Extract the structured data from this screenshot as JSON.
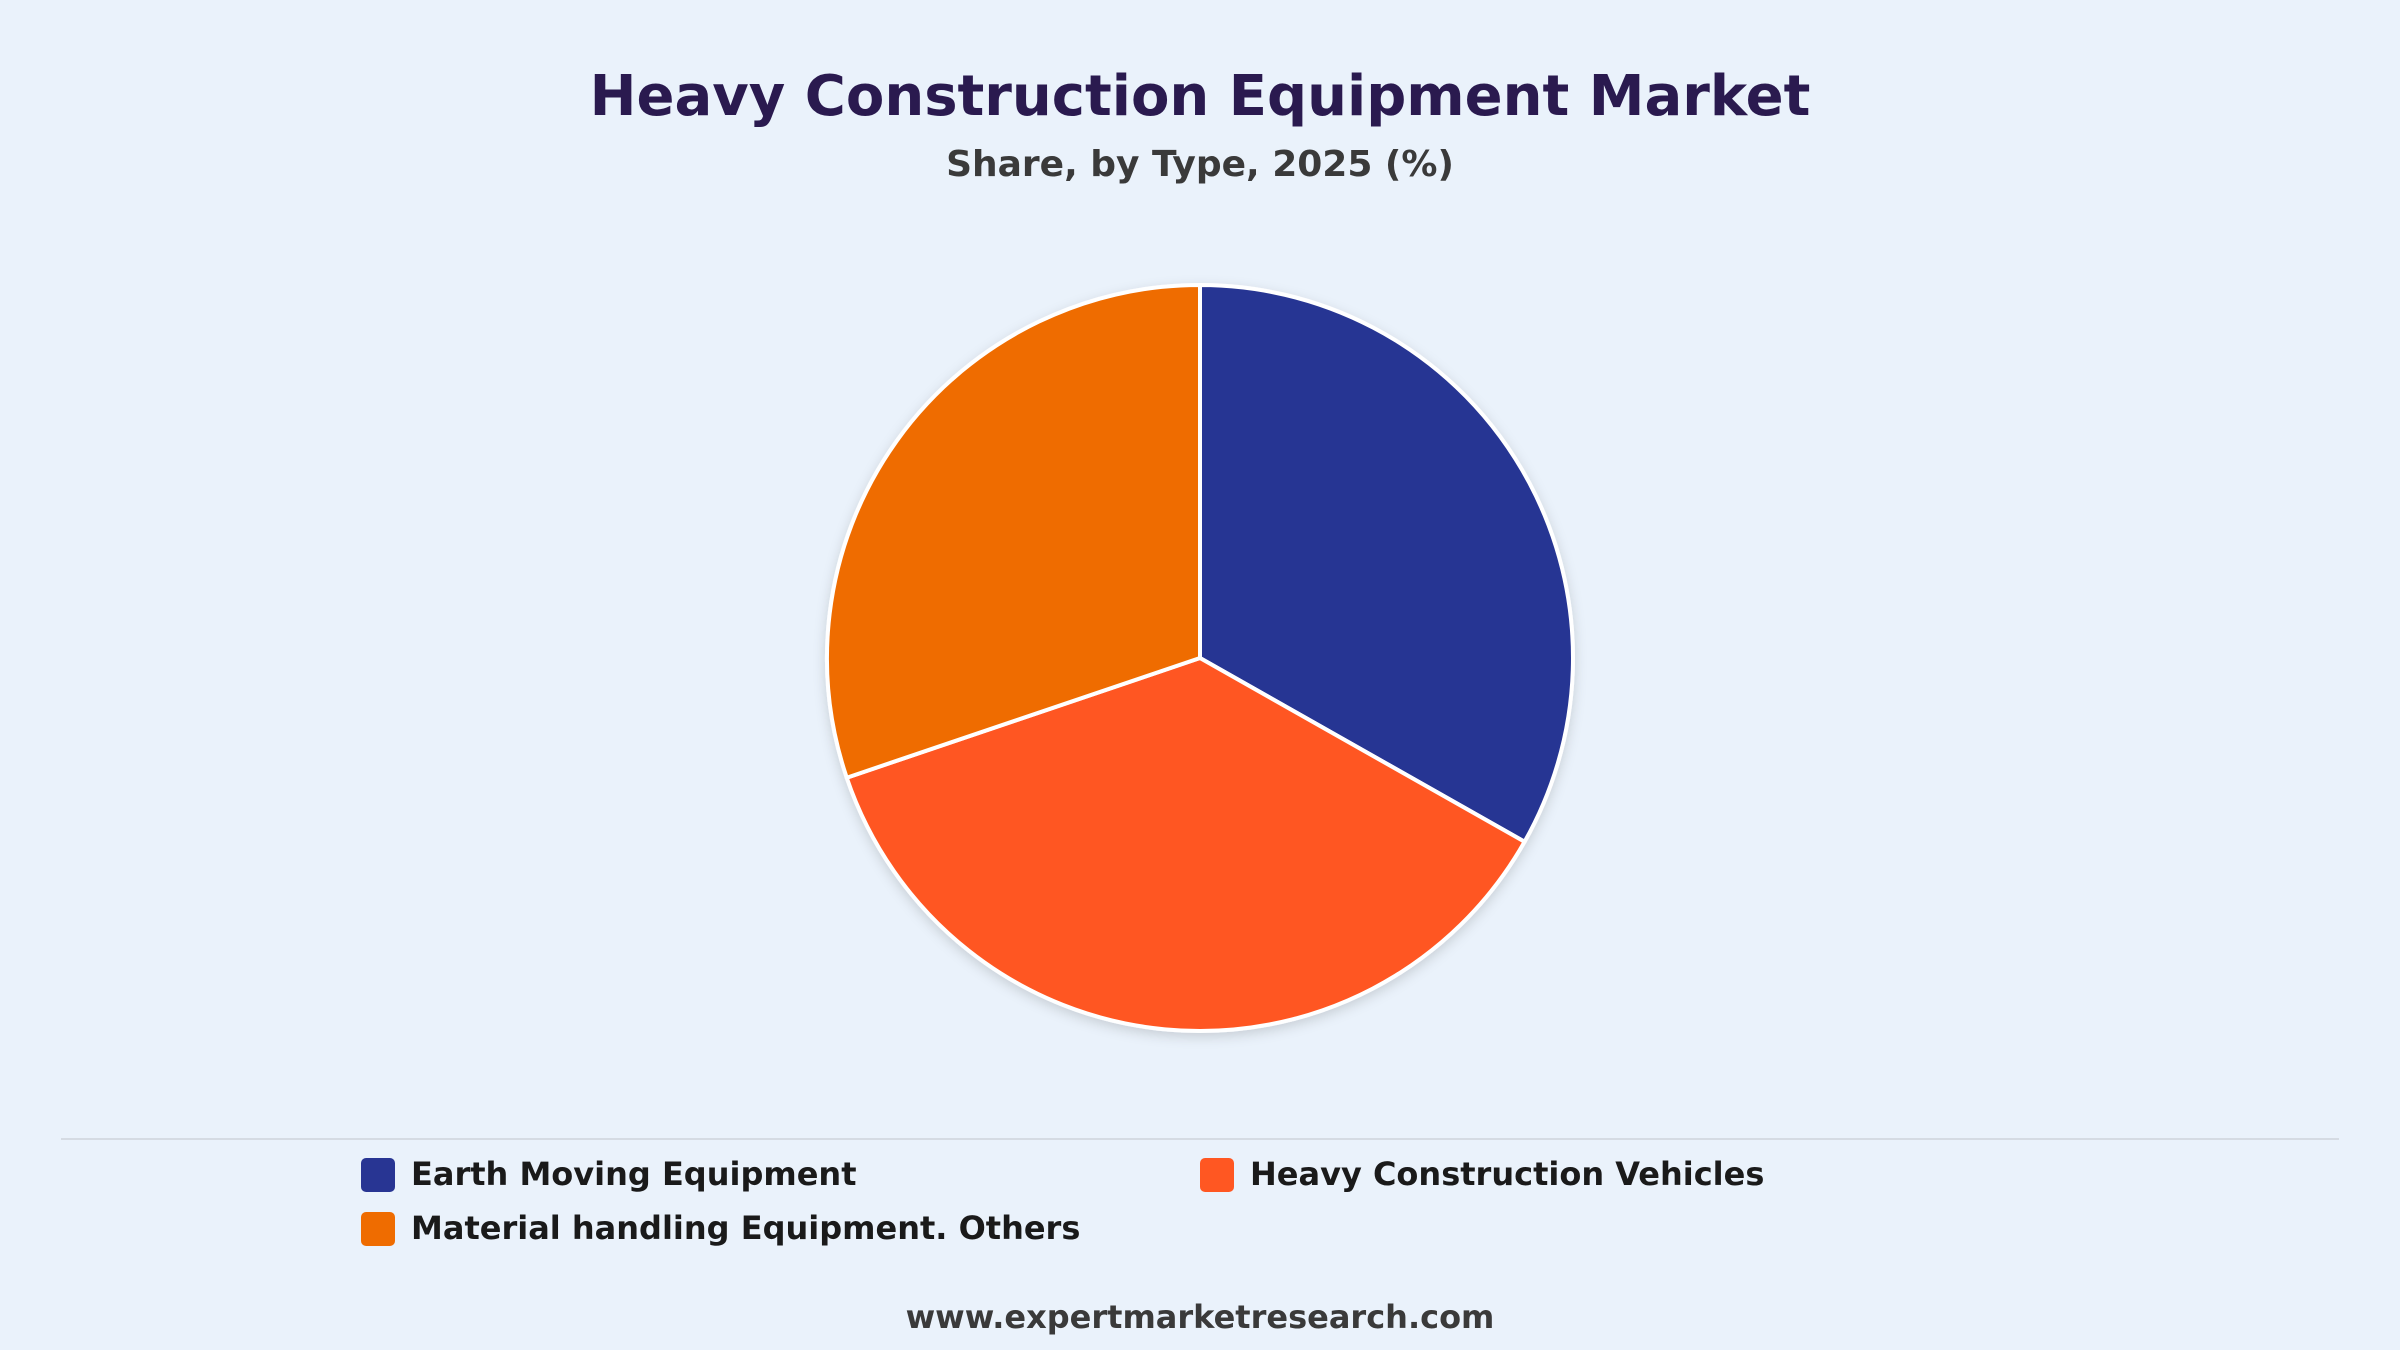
{
  "chart_data": {
    "type": "pie",
    "title": "Heavy Construction Equipment Market",
    "subtitle": "Share, by Type, 2025 (%)",
    "categories": [
      "Earth Moving Equipment",
      "Heavy Construction Vehicles",
      "Material handling Equipment. Others"
    ],
    "values": [
      33.2,
      36.6,
      30.2
    ],
    "colors": [
      "#283593",
      "#ff5722",
      "#ef6c00"
    ],
    "legend": "bottom",
    "footer": "www.expertmarketresearch.com"
  }
}
